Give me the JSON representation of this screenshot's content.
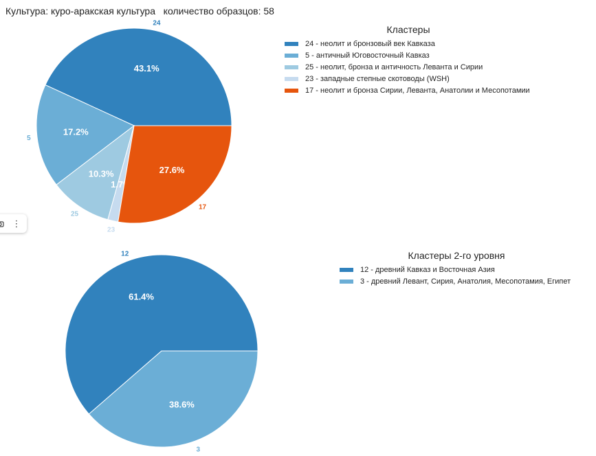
{
  "header": {
    "title": "Культура: куро-аракская культура   количество образцов: 58"
  },
  "toolbar": {
    "camera_icon": "camera-icon",
    "more_icon": "⋮"
  },
  "chart_data": [
    {
      "type": "pie",
      "legend_title": "Кластеры",
      "legend_placement": "top-right",
      "slices": [
        {
          "id": "24",
          "name": "24 - неолит и бронзовый век Кавказа",
          "percent": 43.1,
          "percent_label": "43.1%",
          "color": "#3182bd",
          "label_color": "#3182bd"
        },
        {
          "id": "5",
          "name": "5 - античный Юговосточный Кавказ",
          "percent": 17.2,
          "percent_label": "17.2%",
          "color": "#6baed6",
          "label_color": "#6baed6"
        },
        {
          "id": "25",
          "name": "25 - неолит, бронза и античность Леванта и Сирии",
          "percent": 10.3,
          "percent_label": "10.3%",
          "color": "#9ecae1",
          "label_color": "#9ecae1"
        },
        {
          "id": "23",
          "name": "23 - западные степные скотоводы (WSH)",
          "percent": 1.7,
          "percent_label": "1.7%",
          "color": "#c6dbef",
          "label_color": "#c6dbef"
        },
        {
          "id": "17",
          "name": "17 - неолит и бронза Сирии, Леванта, Анатолии и Месопотамии",
          "percent": 27.6,
          "percent_label": "27.6%",
          "color": "#e6550d",
          "label_color": "#e6550d"
        }
      ]
    },
    {
      "type": "pie",
      "legend_title": "Кластеры 2-го уровня",
      "legend_placement": "top-right",
      "slices": [
        {
          "id": "12",
          "name": "12 - древний Кавказ и Восточная Азия",
          "percent": 61.4,
          "percent_label": "61.4%",
          "color": "#3182bd",
          "label_color": "#3182bd"
        },
        {
          "id": "3",
          "name": "3 - древний Левант, Сирия, Анатолия, Месопотамия, Египет",
          "percent": 38.6,
          "percent_label": "38.6%",
          "color": "#6baed6",
          "label_color": "#6baed6"
        }
      ]
    }
  ]
}
